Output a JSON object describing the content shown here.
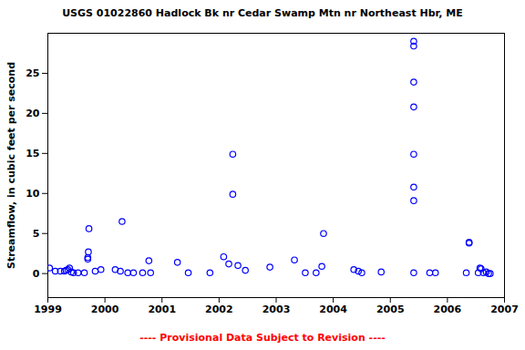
{
  "chart_data": {
    "type": "scatter",
    "title": "USGS 01022860 Hadlock Bk nr Cedar Swamp Mtn nr Northeast Hbr, ME",
    "y_label": "Streamflow, in cubic feet per second",
    "caption": "---- Provisional Data Subject to Revision ----",
    "x": [
      1999.03,
      1999.13,
      1999.22,
      1999.29,
      1999.32,
      1999.35,
      1999.38,
      1999.41,
      1999.45,
      1999.53,
      1999.64,
      1999.7,
      1999.7,
      1999.71,
      1999.72,
      1999.83,
      1999.93,
      2000.18,
      2000.27,
      2000.3,
      2000.4,
      2000.5,
      2000.66,
      2000.77,
      2000.8,
      2001.27,
      2001.46,
      2001.84,
      2002.08,
      2002.17,
      2002.24,
      2002.24,
      2002.33,
      2002.46,
      2002.89,
      2003.32,
      2003.51,
      2003.7,
      2003.8,
      2003.83,
      2004.36,
      2004.44,
      2004.5,
      2004.84,
      2005.41,
      2005.41,
      2005.41,
      2005.41,
      2005.41,
      2005.41,
      2005.41,
      2005.41,
      2005.69,
      2005.79,
      2006.33,
      2006.38,
      2006.38,
      2006.54,
      2006.57,
      2006.59,
      2006.63,
      2006.68,
      2006.72,
      2006.75
    ],
    "values": [
      0.7,
      0.3,
      0.3,
      0.3,
      0.4,
      0.5,
      0.7,
      0.2,
      0.1,
      0.1,
      0.1,
      2.0,
      1.8,
      2.7,
      5.6,
      0.3,
      0.5,
      0.5,
      0.3,
      6.5,
      0.1,
      0.1,
      0.1,
      1.6,
      0.1,
      1.4,
      0.1,
      0.1,
      2.1,
      1.2,
      9.9,
      14.9,
      1.0,
      0.4,
      0.8,
      1.7,
      0.1,
      0.1,
      0.9,
      5.0,
      0.5,
      0.3,
      0.1,
      0.2,
      0.1,
      9.1,
      10.8,
      14.9,
      20.8,
      23.9,
      28.4,
      29.0,
      0.1,
      0.1,
      0.1,
      3.9,
      3.8,
      0.1,
      0.7,
      0.6,
      0.1,
      0.2,
      0.0,
      0.0
    ],
    "color": "#0000ff",
    "marker": "circle",
    "xlim": [
      1999,
      2007
    ],
    "xticks": [
      1999,
      2000,
      2001,
      2002,
      2003,
      2004,
      2005,
      2006,
      2007
    ],
    "ylim": [
      -3,
      30
    ],
    "yticks": [
      0,
      5,
      10,
      15,
      20,
      25
    ],
    "grid": false
  }
}
